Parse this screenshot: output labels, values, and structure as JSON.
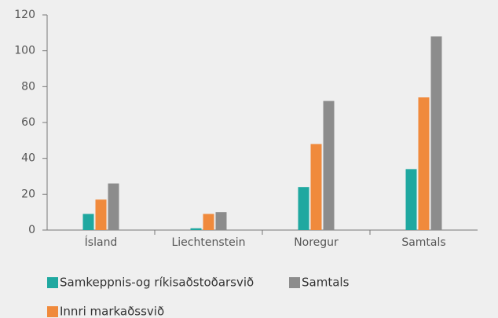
{
  "chart_data": {
    "type": "bar",
    "categories": [
      "Ísland",
      "Liechtenstein",
      "Noregur",
      "Samtals"
    ],
    "series": [
      {
        "name": "Samkeppnis-og ríkisaðstoðarsvið",
        "color": "#1fa8a0",
        "values": [
          9,
          1,
          24,
          34
        ]
      },
      {
        "name": "Innri markaðssvið",
        "color": "#f08a3c",
        "values": [
          17,
          9,
          48,
          74
        ]
      },
      {
        "name": "Samtals",
        "color": "#8c8c8c",
        "values": [
          26,
          10,
          72,
          108
        ]
      }
    ],
    "ylim": [
      0,
      120
    ],
    "yticks": [
      0,
      20,
      40,
      60,
      80,
      100,
      120
    ],
    "grid": false,
    "legend": "bottom"
  }
}
